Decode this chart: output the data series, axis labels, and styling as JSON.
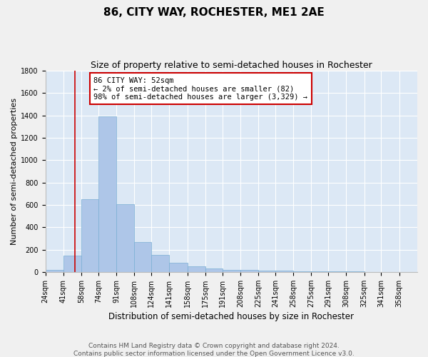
{
  "title": "86, CITY WAY, ROCHESTER, ME1 2AE",
  "subtitle": "Size of property relative to semi-detached houses in Rochester",
  "xlabel": "Distribution of semi-detached houses by size in Rochester",
  "ylabel": "Number of semi-detached properties",
  "footer_line1": "Contains HM Land Registry data © Crown copyright and database right 2024.",
  "footer_line2": "Contains public sector information licensed under the Open Government Licence v3.0.",
  "bar_color": "#aec6e8",
  "bar_edge_color": "#7aafd4",
  "background_color": "#dce8f5",
  "grid_color": "#ffffff",
  "fig_background": "#f0f0f0",
  "annotation_box_color": "#cc0000",
  "property_line_color": "#cc0000",
  "property_sqm": 52,
  "annotation_text_line1": "86 CITY WAY: 52sqm",
  "annotation_text_line2": "← 2% of semi-detached houses are smaller (82)",
  "annotation_text_line3": "98% of semi-detached houses are larger (3,329) →",
  "categories": [
    "24sqm",
    "41sqm",
    "58sqm",
    "74sqm",
    "91sqm",
    "108sqm",
    "124sqm",
    "141sqm",
    "158sqm",
    "175sqm",
    "191sqm",
    "208sqm",
    "225sqm",
    "241sqm",
    "258sqm",
    "275sqm",
    "291sqm",
    "308sqm",
    "325sqm",
    "341sqm",
    "358sqm"
  ],
  "bin_edges": [
    24,
    41,
    58,
    74,
    91,
    108,
    124,
    141,
    158,
    175,
    191,
    208,
    225,
    241,
    258,
    275,
    291,
    308,
    325,
    341,
    358
  ],
  "values": [
    20,
    145,
    650,
    1390,
    605,
    270,
    150,
    80,
    50,
    30,
    20,
    15,
    10,
    10,
    8,
    5,
    5,
    3,
    2,
    2,
    1
  ],
  "ylim": [
    0,
    1800
  ],
  "yticks": [
    0,
    200,
    400,
    600,
    800,
    1000,
    1200,
    1400,
    1600,
    1800
  ],
  "title_fontsize": 11,
  "subtitle_fontsize": 9,
  "xlabel_fontsize": 8.5,
  "ylabel_fontsize": 8,
  "tick_fontsize": 7,
  "footer_fontsize": 6.5,
  "annotation_fontsize": 7.5
}
